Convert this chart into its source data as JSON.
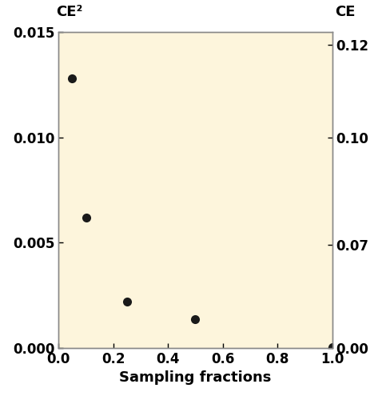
{
  "x": [
    0.05,
    0.1,
    0.25,
    0.5,
    1.0
  ],
  "y": [
    0.0128,
    0.0062,
    0.0022,
    0.00135,
    3e-05
  ],
  "xlim": [
    0.0,
    1.0
  ],
  "ylim_left": [
    0.0,
    0.015
  ],
  "ylim_right": [
    0.0,
    0.12
  ],
  "xlabel": "Sampling fractions",
  "ylabel_left": "CE²",
  "ylabel_right": "CE",
  "left_yticks": [
    0.0,
    0.005,
    0.01,
    0.015
  ],
  "left_ytick_labels": [
    "0.000",
    "0.005",
    "0.010",
    "0.015"
  ],
  "right_yticks": [
    0.0,
    0.07,
    0.1,
    0.12
  ],
  "right_ytick_labels": [
    "0.00",
    "0.07",
    "0.10",
    "0.12"
  ],
  "xticks": [
    0.0,
    0.2,
    0.4,
    0.6,
    0.8,
    1.0
  ],
  "xtick_labels": [
    "0.0",
    "0.2",
    "0.4",
    "0.6",
    "0.8",
    "1.0"
  ],
  "background_color": "#FDF5DC",
  "marker_color": "#1a1a1a",
  "marker_size": 8,
  "spine_color": "#888888",
  "label_fontsize": 13,
  "tick_fontsize": 12
}
